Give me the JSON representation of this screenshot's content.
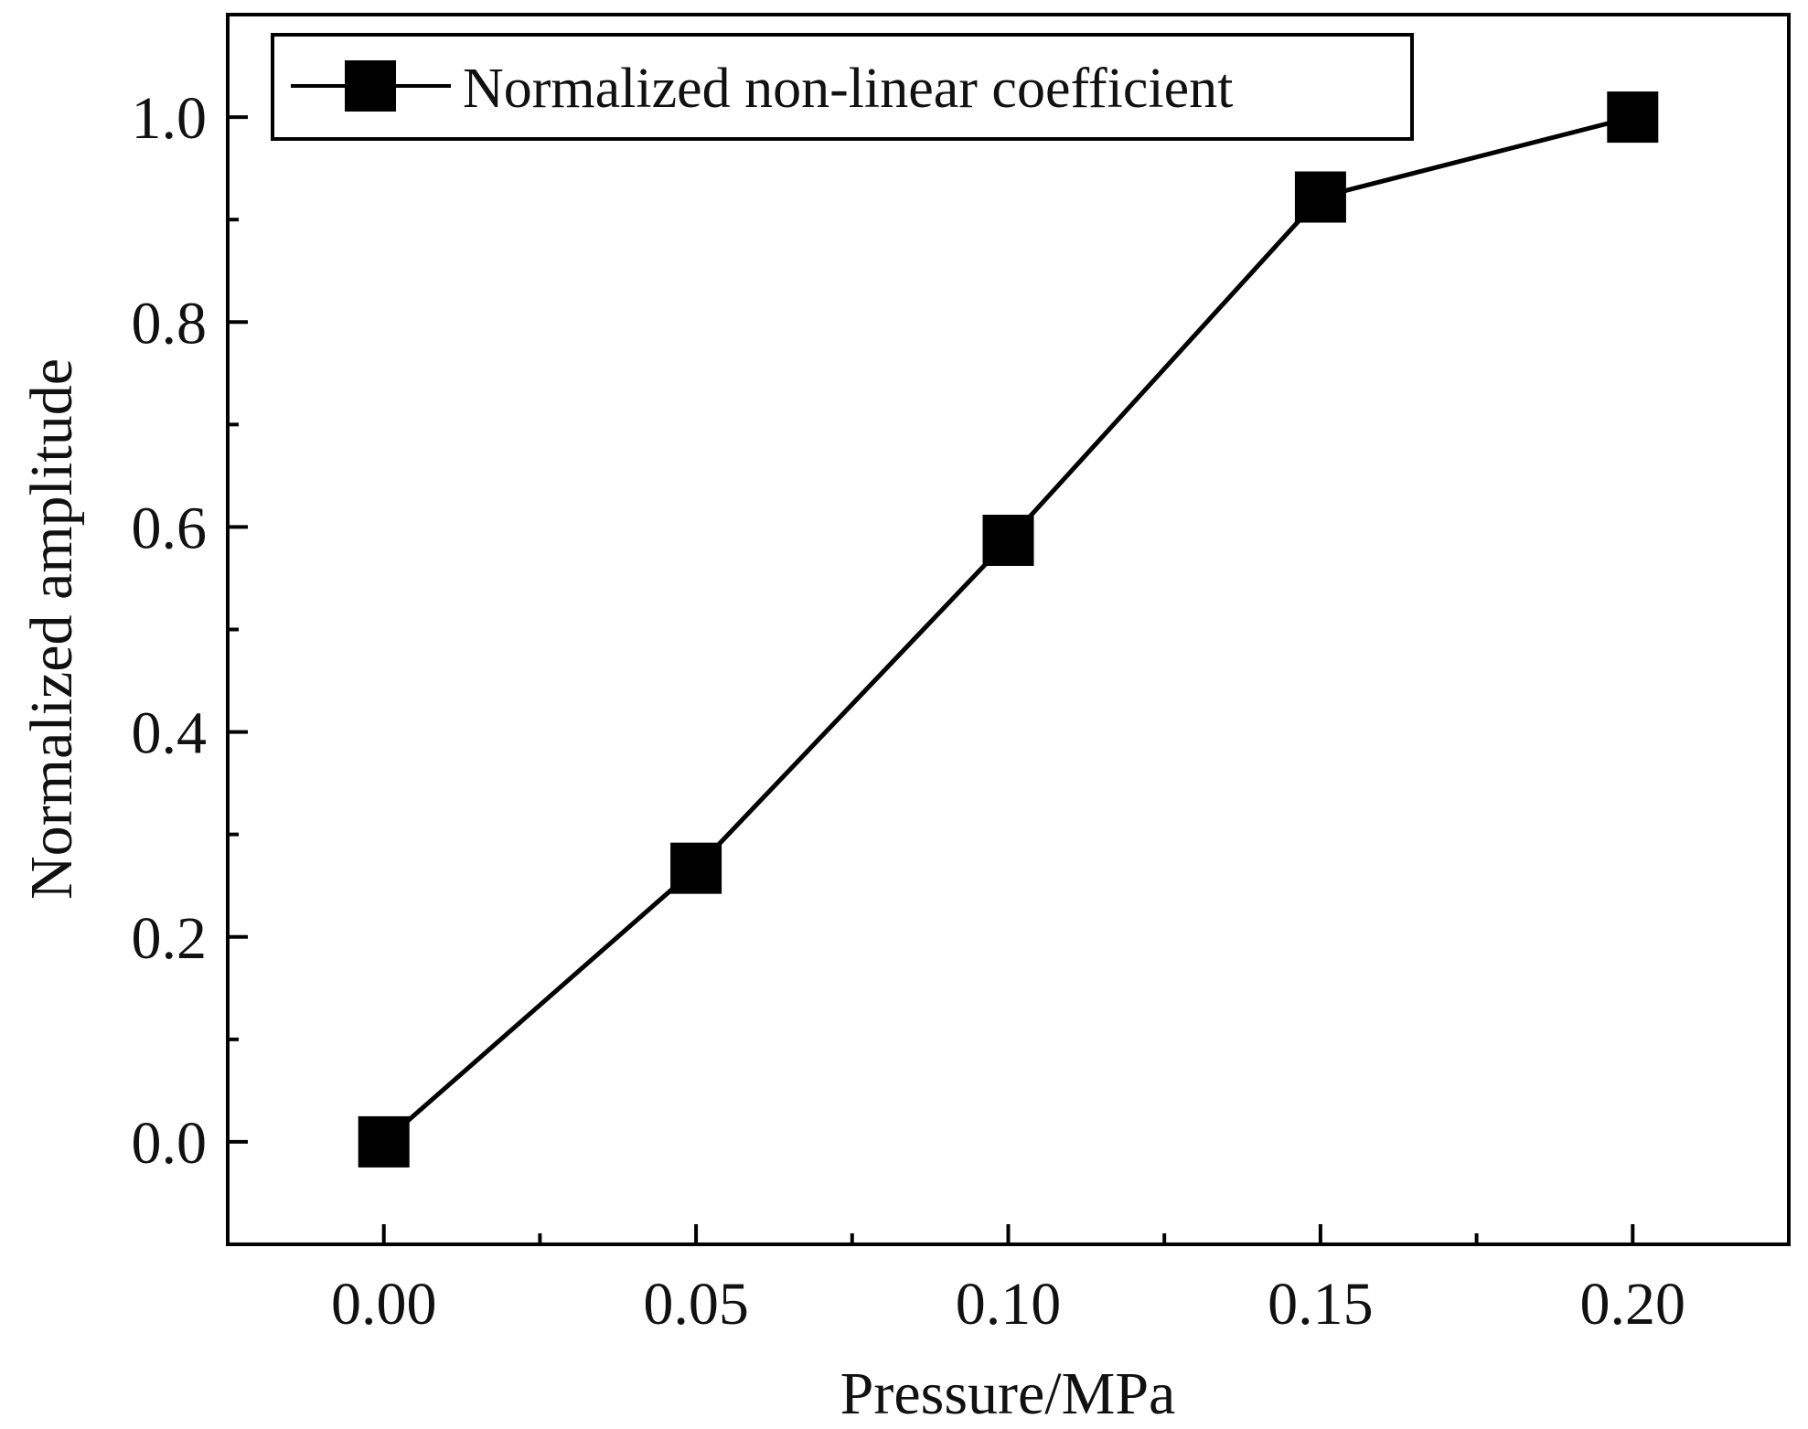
{
  "chart_data": {
    "type": "line",
    "title": "",
    "xlabel": "Pressure/MPa",
    "ylabel": "Normalized amplitude",
    "xlim": [
      -0.025,
      0.225
    ],
    "ylim": [
      -0.1,
      1.1
    ],
    "x_ticks": [
      "0.00",
      "0.05",
      "0.10",
      "0.15",
      "0.20"
    ],
    "x_tick_values": [
      0.0,
      0.05,
      0.1,
      0.15,
      0.2
    ],
    "x_minor_tick_values": [
      0.025,
      0.075,
      0.125,
      0.175
    ],
    "y_ticks": [
      "0.0",
      "0.2",
      "0.4",
      "0.6",
      "0.8",
      "1.0"
    ],
    "y_tick_values": [
      0.0,
      0.2,
      0.4,
      0.6,
      0.8,
      1.0
    ],
    "y_minor_tick_values": [
      0.1,
      0.3,
      0.5,
      0.7,
      0.9
    ],
    "grid": false,
    "legend_position": "top-left",
    "series": [
      {
        "name": "Normalized non-linear coefficient",
        "marker": "square",
        "color": "#000000",
        "x": [
          0.0,
          0.05,
          0.1,
          0.15,
          0.2
        ],
        "values": [
          0.0,
          0.267,
          0.587,
          0.922,
          1.0
        ]
      }
    ]
  }
}
